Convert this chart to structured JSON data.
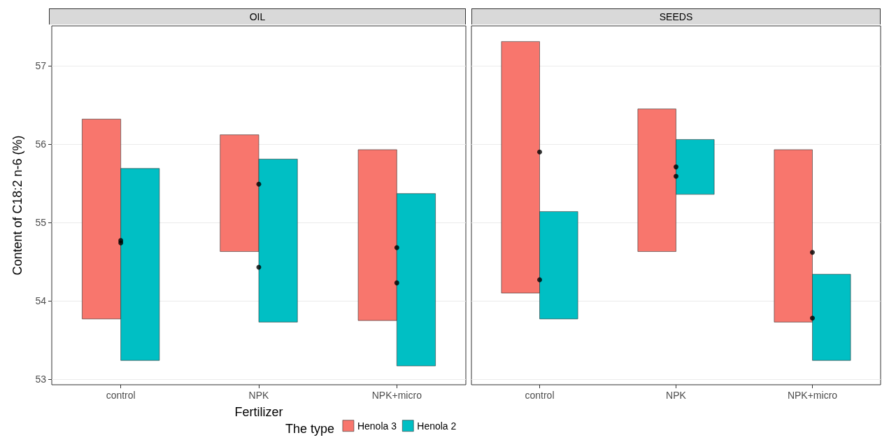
{
  "chart_data": [
    {
      "type": "bar",
      "title": "OIL",
      "xlabel": "Fertilizer",
      "ylabel": "Content of C18:2 n-6 (%)",
      "legend_title": "The type",
      "legend": "bottom",
      "grid": "y",
      "categories": [
        "control",
        "NPK",
        "NPK+micro"
      ],
      "ylim": [
        52.93,
        57.51
      ],
      "yticks": [
        53,
        54,
        55,
        56,
        57
      ],
      "series": [
        {
          "name": "Henola 3",
          "color": "#f8766d",
          "base": [
            53.77,
            54.63,
            53.75
          ],
          "values": [
            2.55,
            1.49,
            2.18
          ]
        },
        {
          "name": "Henola 2",
          "color": "#00bfc4",
          "base": [
            53.24,
            53.73,
            53.17
          ],
          "values": [
            2.45,
            2.08,
            2.2
          ]
        },
        {
          "type": "scatter",
          "color": "#000000",
          "x": [
            "control",
            "NPK",
            "NPK+micro"
          ],
          "values": [
            54.77,
            55.49,
            54.68
          ]
        },
        {
          "type": "scatter",
          "color": "#000000",
          "x": [
            "control",
            "NPK",
            "NPK+micro"
          ],
          "values": [
            54.74,
            54.43,
            54.23
          ]
        }
      ]
    },
    {
      "type": "bar",
      "title": "SEEDS",
      "grid": "y",
      "tick_labels": "x",
      "categories": [
        "control",
        "NPK",
        "NPK+micro"
      ],
      "ylim": [
        52.93,
        57.51
      ],
      "yticks": [
        53,
        54,
        55,
        56,
        57
      ],
      "series": [
        {
          "color": "#f8766d",
          "base": [
            54.1,
            54.63,
            53.73
          ],
          "values": [
            3.21,
            1.82,
            2.2
          ]
        },
        {
          "color": "#00bfc4",
          "base": [
            53.77,
            55.36,
            53.24
          ],
          "values": [
            1.37,
            0.7,
            1.1
          ]
        },
        {
          "type": "scatter",
          "color": "#000000",
          "x": [
            "control",
            "NPK",
            "NPK+micro"
          ],
          "values": [
            55.9,
            55.71,
            54.62
          ]
        },
        {
          "type": "scatter",
          "color": "#000000",
          "x": [
            "control",
            "NPK",
            "NPK+micro"
          ],
          "values": [
            54.27,
            55.59,
            53.78
          ]
        }
      ]
    }
  ]
}
